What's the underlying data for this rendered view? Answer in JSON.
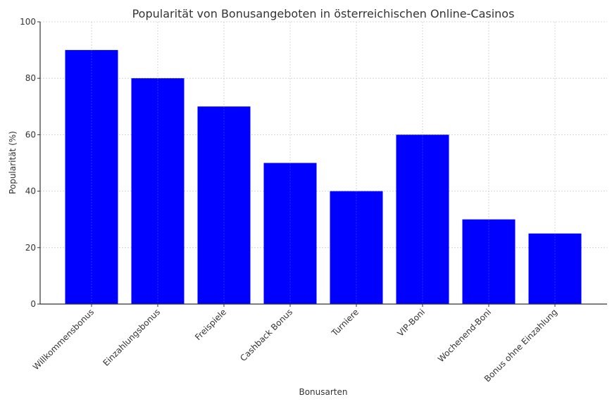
{
  "chart_data": {
    "type": "bar",
    "title": "Popularität von Bonusangeboten in österreichischen Online-Casinos",
    "xlabel": "Bonusarten",
    "ylabel": "Popularität (%)",
    "categories": [
      "Willkommensbonus",
      "Einzahlungsbonus",
      "Freispiele",
      "Cashback Bonus",
      "Turniere",
      "VIP-Boni",
      "Wochenend-Boni",
      "Bonus ohne Einzahlung"
    ],
    "values": [
      90,
      80,
      70,
      50,
      40,
      60,
      30,
      25
    ],
    "ylim": [
      0,
      100
    ],
    "yticks": [
      0,
      20,
      40,
      60,
      80,
      100
    ],
    "grid": true,
    "bar_color": "#0000ff"
  }
}
